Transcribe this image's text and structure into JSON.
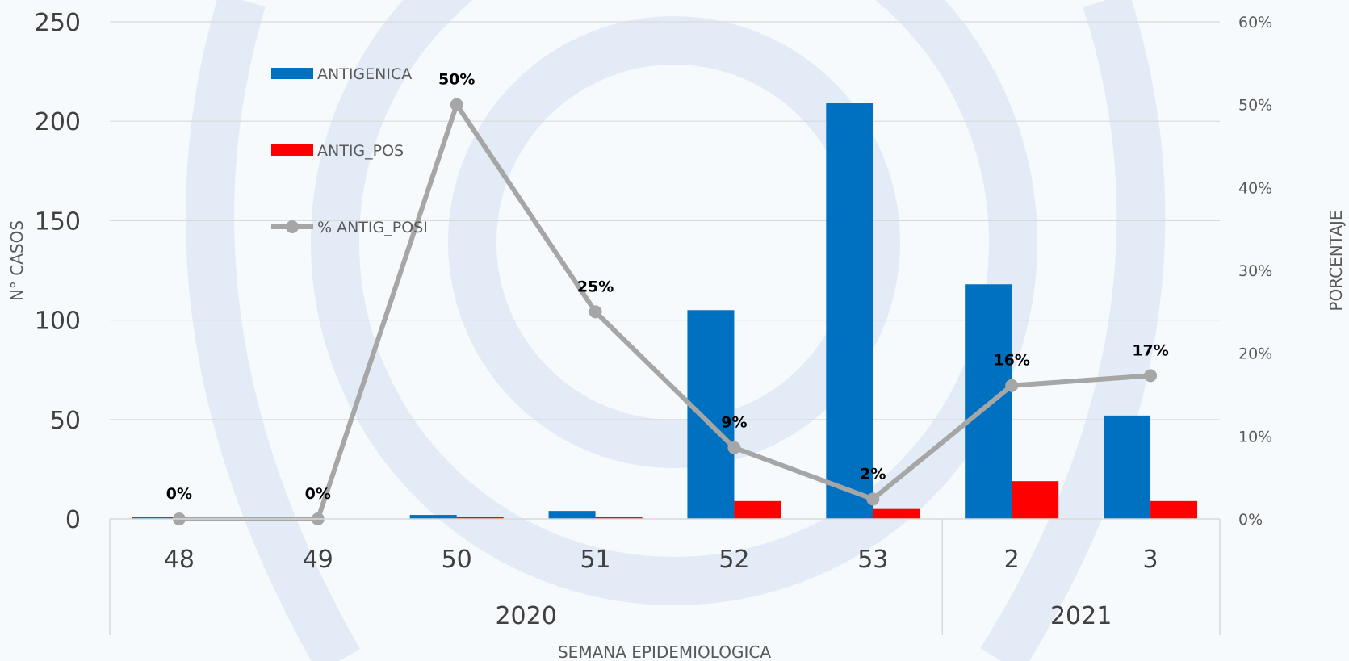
{
  "chart_data": {
    "type": "bar",
    "categories": [
      "48",
      "49",
      "50",
      "51",
      "52",
      "53",
      "2",
      "3"
    ],
    "groups": [
      {
        "label": "2020",
        "categories": [
          "48",
          "49",
          "50",
          "51",
          "52",
          "53"
        ]
      },
      {
        "label": "2021",
        "categories": [
          "2",
          "3"
        ]
      }
    ],
    "series": [
      {
        "name": "ANTIGENICA",
        "type": "bar",
        "axis": "left",
        "color": "#0070c0",
        "values": [
          1,
          0,
          2,
          4,
          105,
          209,
          118,
          52
        ]
      },
      {
        "name": "ANTIG_POS",
        "type": "bar",
        "axis": "left",
        "color": "#ff0000",
        "values": [
          0,
          0,
          1,
          1,
          9,
          5,
          19,
          9
        ]
      },
      {
        "name": "% ANTIG_POSI",
        "type": "line",
        "axis": "right",
        "color": "#a6a6a6",
        "values": [
          0,
          0,
          50,
          25,
          8.6,
          2.4,
          16.1,
          17.3
        ],
        "labels": [
          "0%",
          "0%",
          "50%",
          "25%",
          "9%",
          "2%",
          "16%",
          "17%"
        ]
      }
    ],
    "xlabel": "SEMANA EPIDEMIOLOGICA",
    "ylabel": "N° CASOS",
    "y2label": "PORCENTAJE",
    "ylim": [
      0,
      250
    ],
    "yticks": [
      0,
      50,
      100,
      150,
      200,
      250
    ],
    "y2lim": [
      0,
      60
    ],
    "y2ticks": [
      "0%",
      "10%",
      "20%",
      "30%",
      "40%",
      "50%",
      "60%"
    ],
    "grid": true,
    "legend_position": "top-left"
  }
}
